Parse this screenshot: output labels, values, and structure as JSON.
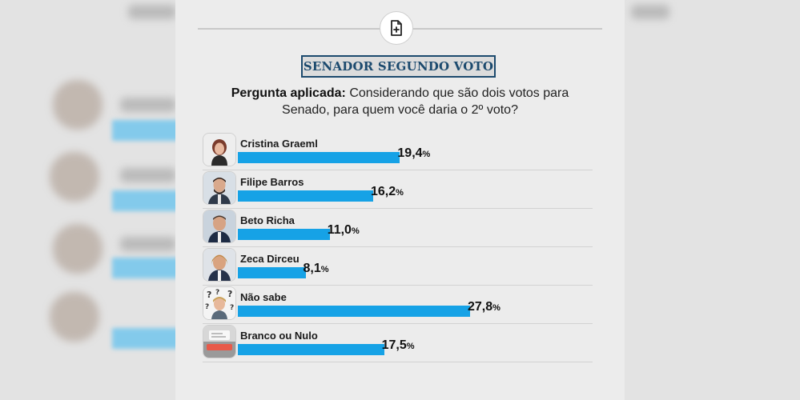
{
  "header": {
    "title": "SENADOR SEGUNDO VOTO"
  },
  "question": {
    "label": "Pergunta aplicada:",
    "text": "Considerando que são dois votos para Senado, para quem você daria o 2º voto?"
  },
  "chart_data": {
    "type": "bar",
    "orientation": "horizontal",
    "categories": [
      "Cristina Graeml",
      "Filipe Barros",
      "Beto Richa",
      "Zeca Dirceu",
      "Não sabe",
      "Branco ou Nulo"
    ],
    "values": [
      19.4,
      16.2,
      11.0,
      8.1,
      27.8,
      17.5
    ],
    "value_labels": [
      "19,4",
      "16,2",
      "11,0",
      "8,1",
      "27,8",
      "17,5"
    ],
    "unit": "%",
    "colors": {
      "bar": "#16a2e6",
      "title": "#1c4a6e"
    },
    "icons": [
      "portrait",
      "portrait",
      "portrait",
      "portrait",
      "question-marks-icon",
      "ballot-box-icon"
    ]
  }
}
